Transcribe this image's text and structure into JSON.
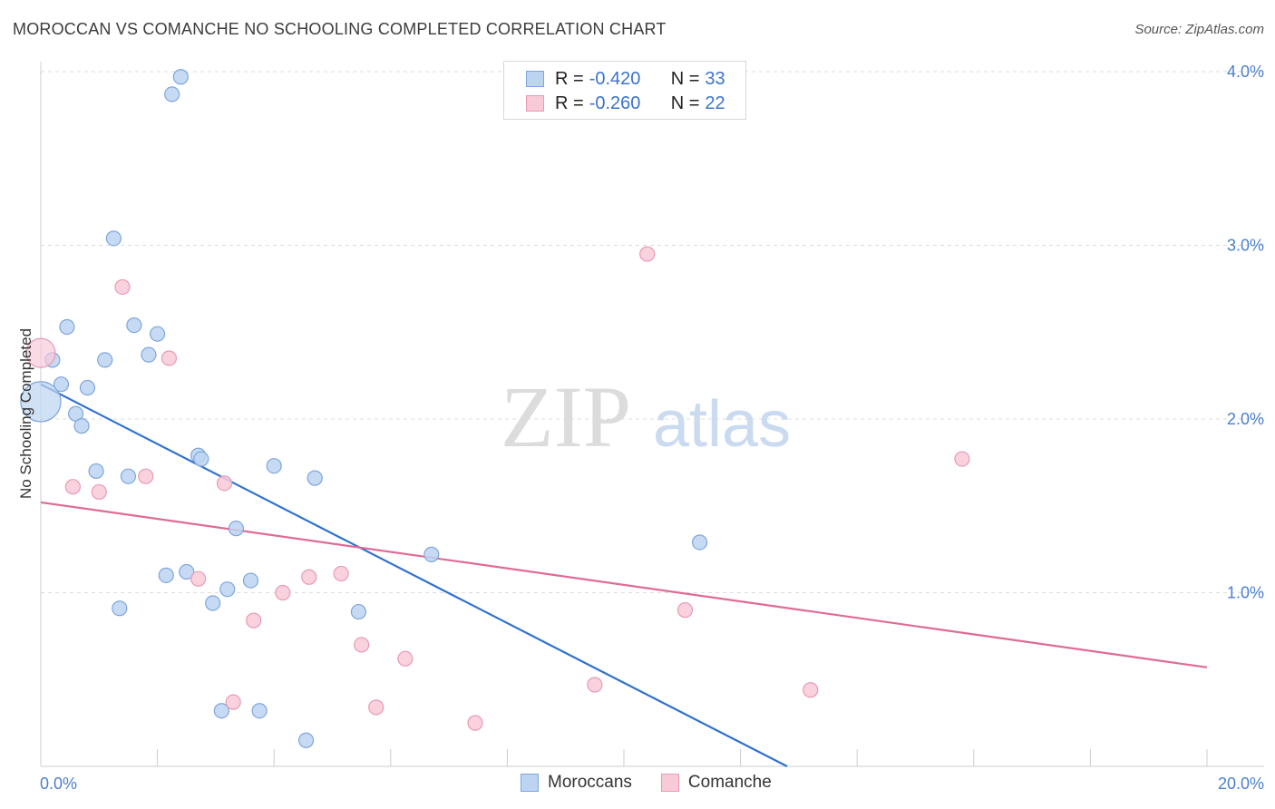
{
  "title": "MOROCCAN VS COMANCHE NO SCHOOLING COMPLETED CORRELATION CHART",
  "source": "Source: ZipAtlas.com",
  "watermark": {
    "zip": "ZIP",
    "atlas": "atlas"
  },
  "legend": {
    "series1": {
      "r_label": "R = ",
      "r_value": "-0.420",
      "n_label": "N = ",
      "n_value": "33"
    },
    "series2": {
      "r_label": "R = ",
      "r_value": "-0.260",
      "n_label": "N = ",
      "n_value": "22"
    }
  },
  "colors": {
    "moroccan_fill": "#bcd4f2",
    "moroccan_stroke": "#7fa6dc",
    "moroccan_line": "#2f72cf",
    "comanche_fill": "#f8cad8",
    "comanche_stroke": "#e99ab4",
    "comanche_line": "#e06a96",
    "grid": "#dddddd",
    "tick_label": "#4a7fd0"
  },
  "chart_data": {
    "type": "scatter",
    "title": "MOROCCAN VS COMANCHE NO SCHOOLING COMPLETED CORRELATION CHART",
    "xlabel": "",
    "ylabel": "No Schooling Completed",
    "xlim": [
      0,
      20
    ],
    "ylim": [
      0,
      4.1
    ],
    "x_tick_labels": [
      "0.0%",
      "20.0%"
    ],
    "y_ticks": [
      1.0,
      2.0,
      3.0,
      4.0
    ],
    "y_tick_labels": [
      "1.0%",
      "2.0%",
      "3.0%",
      "4.0%"
    ],
    "grid": true,
    "legend_position": "top-center",
    "series": [
      {
        "name": "Moroccans",
        "points": [
          [
            0.0,
            2.1
          ],
          [
            0.2,
            2.34
          ],
          [
            0.35,
            2.2
          ],
          [
            0.45,
            2.53
          ],
          [
            0.6,
            2.03
          ],
          [
            0.7,
            1.96
          ],
          [
            0.8,
            2.18
          ],
          [
            0.95,
            1.7
          ],
          [
            1.1,
            2.34
          ],
          [
            1.25,
            3.04
          ],
          [
            1.35,
            0.91
          ],
          [
            1.5,
            1.67
          ],
          [
            1.6,
            2.54
          ],
          [
            1.85,
            2.37
          ],
          [
            2.0,
            2.49
          ],
          [
            2.15,
            1.1
          ],
          [
            2.25,
            3.87
          ],
          [
            2.4,
            3.97
          ],
          [
            2.5,
            1.12
          ],
          [
            2.7,
            1.79
          ],
          [
            2.75,
            1.77
          ],
          [
            2.95,
            0.94
          ],
          [
            3.1,
            0.32
          ],
          [
            3.2,
            1.02
          ],
          [
            3.35,
            1.37
          ],
          [
            3.6,
            1.07
          ],
          [
            3.75,
            0.32
          ],
          [
            4.0,
            1.73
          ],
          [
            4.55,
            0.15
          ],
          [
            4.7,
            1.66
          ],
          [
            5.45,
            0.89
          ],
          [
            6.7,
            1.22
          ],
          [
            11.3,
            1.29
          ]
        ],
        "trend_line": {
          "x": [
            0.0,
            12.8
          ],
          "y": [
            2.2,
            0.0
          ]
        }
      },
      {
        "name": "Comanche",
        "points": [
          [
            0.0,
            2.38
          ],
          [
            0.55,
            1.61
          ],
          [
            1.0,
            1.58
          ],
          [
            1.4,
            2.76
          ],
          [
            1.8,
            1.67
          ],
          [
            2.2,
            2.35
          ],
          [
            2.7,
            1.08
          ],
          [
            3.15,
            1.63
          ],
          [
            3.3,
            0.37
          ],
          [
            3.65,
            0.84
          ],
          [
            4.15,
            1.0
          ],
          [
            4.6,
            1.09
          ],
          [
            5.15,
            1.11
          ],
          [
            5.5,
            0.7
          ],
          [
            5.75,
            0.34
          ],
          [
            6.25,
            0.62
          ],
          [
            7.45,
            0.25
          ],
          [
            9.5,
            0.47
          ],
          [
            10.4,
            2.95
          ],
          [
            11.05,
            0.9
          ],
          [
            13.2,
            0.44
          ],
          [
            15.8,
            1.77
          ]
        ],
        "trend_line": {
          "x": [
            0.0,
            20.0
          ],
          "y": [
            1.52,
            0.57
          ]
        }
      }
    ]
  }
}
